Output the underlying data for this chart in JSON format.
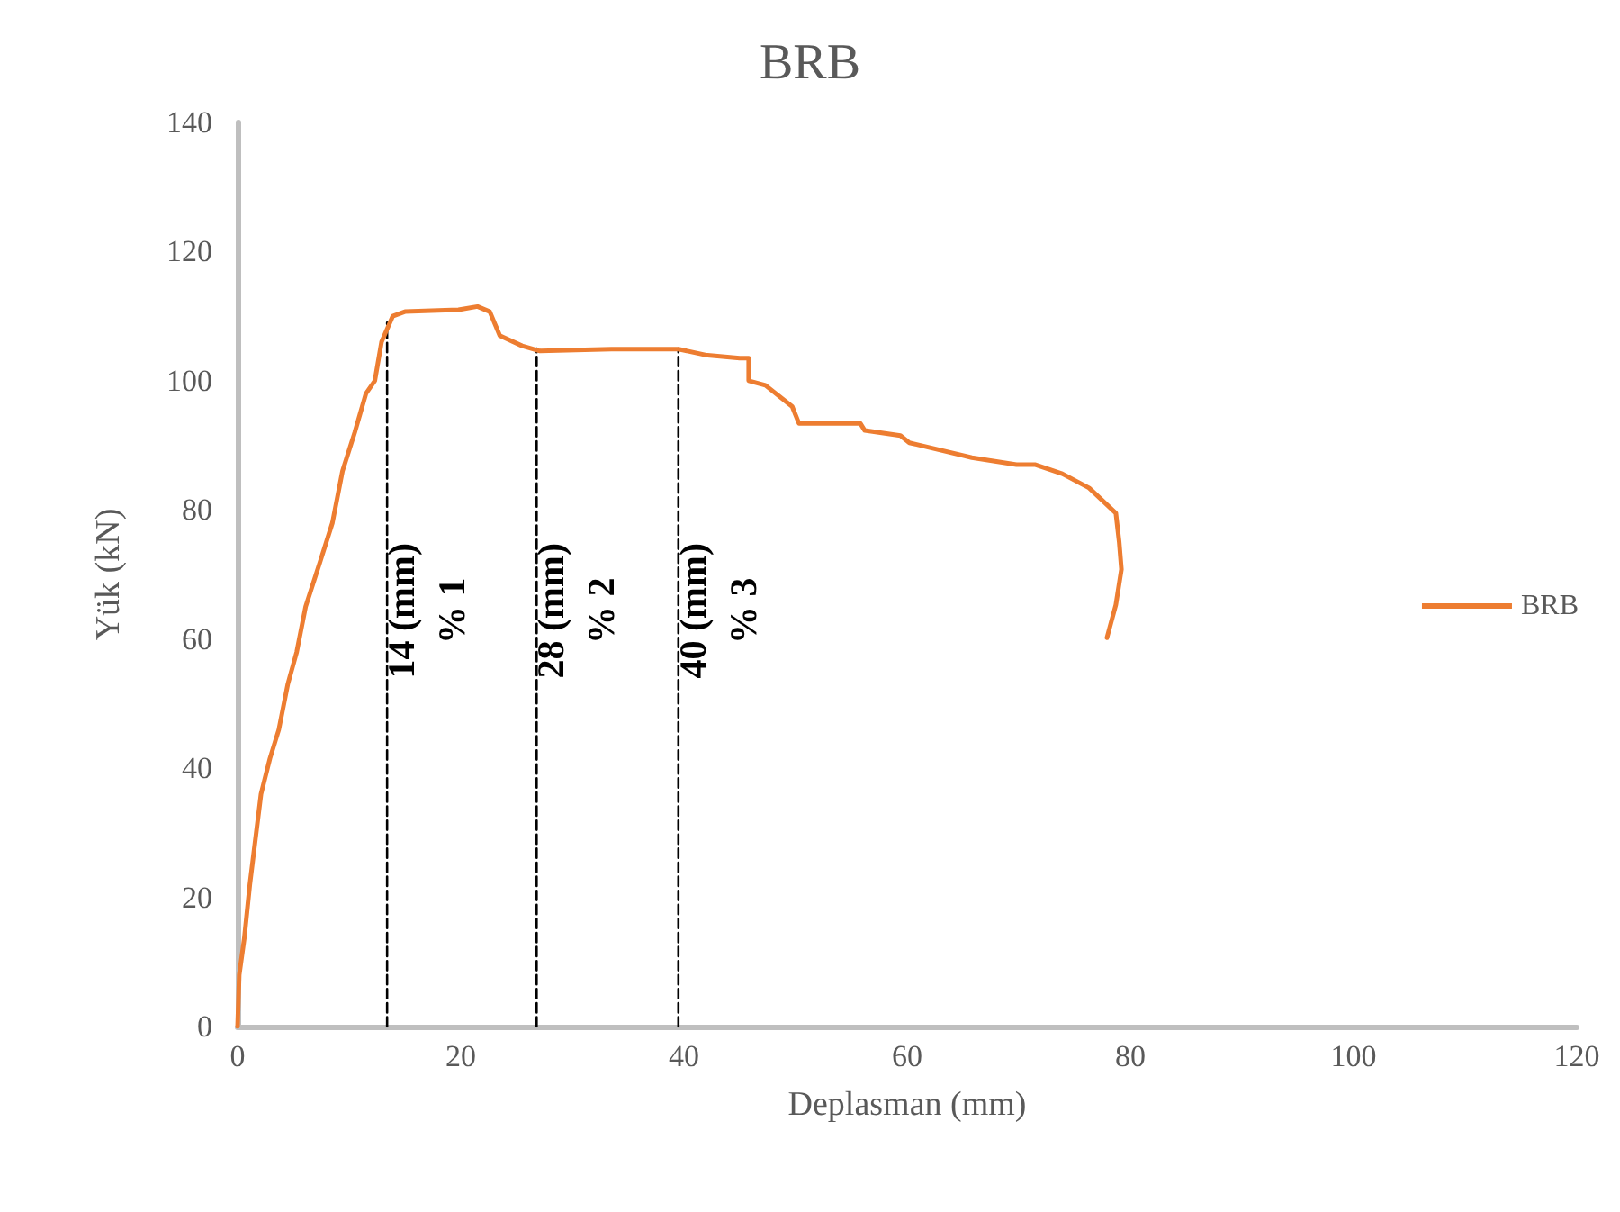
{
  "chart_data": {
    "type": "line",
    "title": "BRB",
    "xlabel": "Deplasman (mm)",
    "ylabel": "Yük (kN)",
    "xlim": [
      0,
      120
    ],
    "xticks": [
      0,
      20,
      40,
      60,
      80,
      100,
      120
    ],
    "ylim": [
      0,
      140
    ],
    "yticks": [
      0,
      20,
      40,
      60,
      80,
      100,
      120,
      140
    ],
    "grid": false,
    "legend": "right",
    "marker": "none",
    "series": [
      {
        "name": "BRB",
        "color": "#ed7d31",
        "line_style": "solid",
        "x": [
          0,
          0.15,
          0.6,
          1.1,
          1.6,
          2.1,
          2.9,
          3.7,
          4.5,
          5.3,
          6.1,
          7.4,
          8.5,
          9.4,
          10.5,
          11.5,
          12.3,
          12.9,
          13.9,
          15,
          19.8,
          21.5,
          22.6,
          23.5,
          25.5,
          27.1,
          33.5,
          39.5,
          41.9,
          45,
          45.8,
          45.8,
          47.3,
          49.7,
          50.3,
          55.8,
          56.2,
          59.4,
          60.2,
          65.8,
          69.8,
          71.5,
          73.9,
          76.3,
          78.7,
          79,
          79.2,
          78.7,
          77.9
        ],
        "values": [
          0,
          8,
          13.6,
          22,
          29,
          36,
          41.5,
          46,
          53,
          58,
          65,
          72,
          78,
          86,
          92,
          98,
          100,
          106,
          110,
          110.7,
          111,
          111.5,
          110.7,
          107,
          105.4,
          104.6,
          104.9,
          104.9,
          104,
          103.5,
          103.5,
          100,
          99.3,
          96,
          93.4,
          93.4,
          92.3,
          91.5,
          90.4,
          88.1,
          87,
          87,
          85.6,
          83.4,
          79.5,
          75,
          70.8,
          65.3,
          60.2
        ]
      },
      {
        "type": "line",
        "color": "#000000",
        "line_style": "dashed",
        "x": [
          13.4,
          13.4
        ],
        "values": [
          0,
          109
        ]
      },
      {
        "type": "line",
        "color": "#000000",
        "line_style": "dashed",
        "x": [
          26.8,
          26.8
        ],
        "values": [
          0,
          105
        ]
      },
      {
        "type": "line",
        "color": "#000000",
        "line_style": "dashed",
        "x": [
          39.5,
          39.5
        ],
        "values": [
          0,
          105
        ]
      }
    ],
    "annotations": [
      "14 (mm)\n% 1",
      "28 (mm)\n% 2",
      "40 (mm)\n% 3"
    ]
  }
}
